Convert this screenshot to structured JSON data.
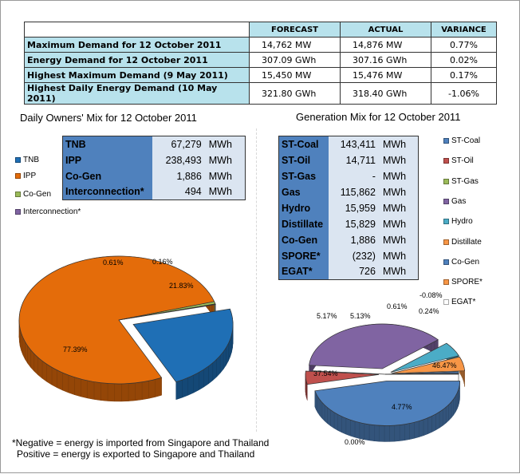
{
  "summary": {
    "headers": [
      "FORECAST",
      "ACTUAL",
      "VARIANCE"
    ],
    "rows": [
      {
        "label": "Maximum Demand for 12 October 2011",
        "forecast": "14,762  MW",
        "actual": "14,876  MW",
        "variance": "0.77%"
      },
      {
        "label": "Energy Demand for 12 October 2011",
        "forecast": "307.09  GWh",
        "actual": "307.16  GWh",
        "variance": "0.02%"
      },
      {
        "label": "Highest Maximum Demand (9 May 2011)",
        "forecast": "15,450  MW",
        "actual": "15,476  MW",
        "variance": "0.17%"
      },
      {
        "label": "Highest Daily Energy Demand (10 May 2011)",
        "forecast": "321.80  GWh",
        "actual": "318.40  GWh",
        "variance": "-1.06%"
      }
    ]
  },
  "owners_mix": {
    "title": "Daily Owners' Mix for 12 October 2011",
    "rows": [
      {
        "name": "TNB",
        "value": "67,279",
        "unit": "MWh"
      },
      {
        "name": "IPP",
        "value": "238,493",
        "unit": "MWh"
      },
      {
        "name": "Co-Gen",
        "value": "1,886",
        "unit": "MWh"
      },
      {
        "name": "Interconnection*",
        "value": "494",
        "unit": "MWh"
      }
    ]
  },
  "generation_mix": {
    "title": "Generation Mix for 12 October 2011",
    "rows": [
      {
        "name": "ST-Coal",
        "value": "143,411",
        "unit": "MWh"
      },
      {
        "name": "ST-Oil",
        "value": "14,711",
        "unit": "MWh"
      },
      {
        "name": "ST-Gas",
        "value": "-",
        "unit": "MWh"
      },
      {
        "name": "Gas",
        "value": "115,862",
        "unit": "MWh"
      },
      {
        "name": "Hydro",
        "value": "15,959",
        "unit": "MWh"
      },
      {
        "name": "Distillate",
        "value": "15,829",
        "unit": "MWh"
      },
      {
        "name": "Co-Gen",
        "value": "1,886",
        "unit": "MWh"
      },
      {
        "name": "SPORE*",
        "value": "(232)",
        "unit": "MWh"
      },
      {
        "name": "EGAT*",
        "value": "726",
        "unit": "MWh"
      }
    ]
  },
  "footnote": {
    "line1": "*Negative = energy is imported from Singapore and Thailand",
    "line2": "Positive = energy is exported to Singapore and Thailand"
  },
  "chart_data": [
    {
      "type": "pie",
      "title": "Daily Owners' Mix for 12 October 2011",
      "labels": [
        "TNB",
        "IPP",
        "Co-Gen",
        "Interconnection*"
      ],
      "values": [
        21.83,
        77.39,
        0.61,
        0.16
      ],
      "data_labels": [
        "21.83%",
        "77.39%",
        "0.61%",
        "0.16%"
      ],
      "colors": [
        "#1f6fb5",
        "#e46c0a",
        "#9bbb59",
        "#8064a2"
      ],
      "legend_position": "left"
    },
    {
      "type": "pie",
      "title": "Generation Mix for 12 October 2011",
      "labels": [
        "ST-Coal",
        "ST-Oil",
        "ST-Gas",
        "Gas",
        "Hydro",
        "Distillate",
        "Co-Gen",
        "SPORE*",
        "EGAT*"
      ],
      "values": [
        46.47,
        4.77,
        0.0,
        37.54,
        5.17,
        5.13,
        0.61,
        -0.08,
        0.24
      ],
      "data_labels": [
        "46.47%",
        "4.77%",
        "0.00%",
        "37.54%",
        "5.17%",
        "5.13%",
        "0.61%",
        "-0.08%",
        "0.24%"
      ],
      "colors": [
        "#4f81bd",
        "#c0504d",
        "#9bbb59",
        "#8064a2",
        "#4bacc6",
        "#f79646",
        "#4f81bd",
        "#f79646",
        "#ffffff"
      ],
      "legend_position": "right"
    }
  ]
}
